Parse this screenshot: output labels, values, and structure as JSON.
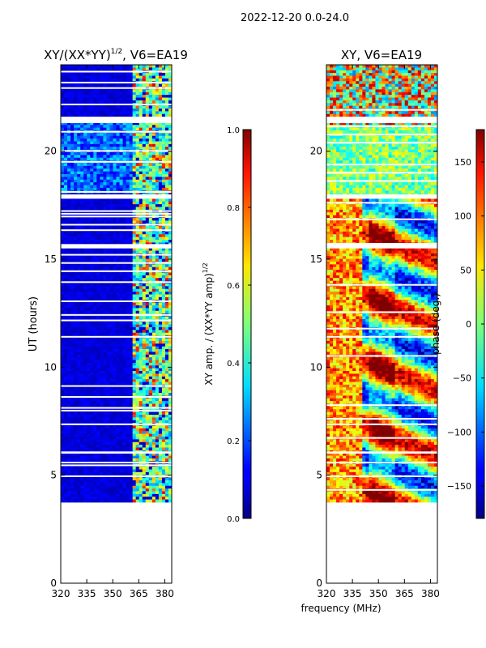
{
  "suptitle": "2022-12-20 0.0-24.0",
  "chart_data": [
    {
      "type": "heatmap",
      "title": "XY/(XX*YY)^1/2, V6=EA19",
      "title_main": "XY/(XX*YY)",
      "title_sup": "1/2",
      "title_tail": ", V6=EA19",
      "xlabel": "",
      "ylabel": "UT (hours)",
      "xlim": [
        320,
        384
      ],
      "ylim": [
        0,
        24
      ],
      "xticks": [
        320,
        335,
        350,
        365,
        380
      ],
      "yticks": [
        0,
        5,
        10,
        15,
        20
      ],
      "data_extent_hours": [
        3.75,
        24
      ],
      "colorbar": {
        "label": "XY amp. / (XX*YY amp)^1/2",
        "label_main": "XY amp. / (XX*YY amp)",
        "label_sup": "1/2",
        "range": [
          0.0,
          1.0
        ],
        "ticks": [
          "0.0",
          "0.2",
          "0.4",
          "0.6",
          "0.8",
          "1.0"
        ]
      }
    },
    {
      "type": "heatmap",
      "title": "XY, V6=EA19",
      "xlabel": "frequency (MHz)",
      "ylabel": "",
      "xlim": [
        320,
        384
      ],
      "ylim": [
        0,
        24
      ],
      "xticks": [
        320,
        335,
        350,
        365,
        380
      ],
      "yticks": [
        0,
        5,
        10,
        15,
        20
      ],
      "data_extent_hours": [
        3.75,
        24
      ],
      "colorbar": {
        "label": "phase (deg.)",
        "range": [
          -180,
          180
        ],
        "ticks": [
          "150",
          "100",
          "50",
          "0",
          "−50",
          "−100",
          "−150"
        ]
      }
    }
  ]
}
